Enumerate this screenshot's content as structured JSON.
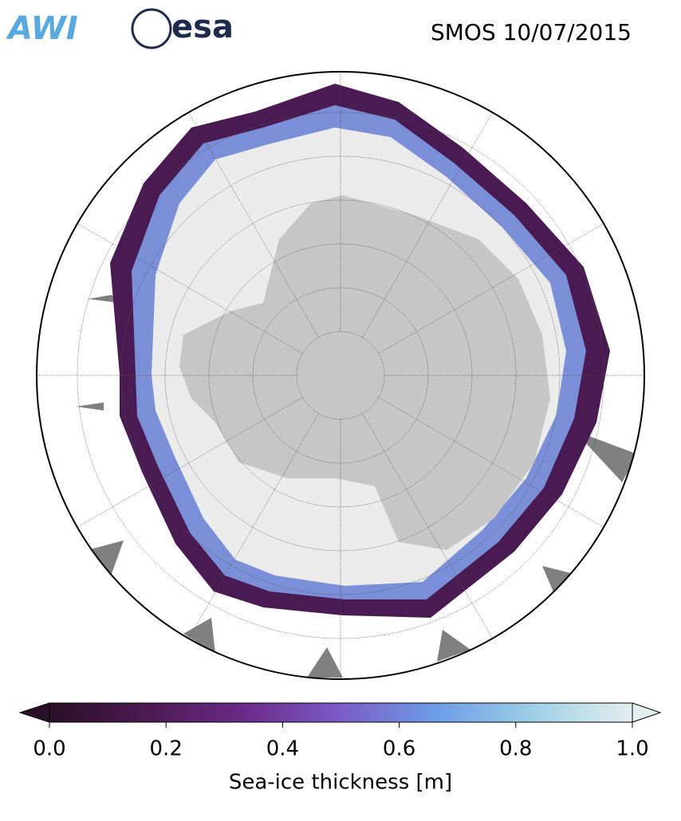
{
  "header": {
    "logos": [
      "AWI",
      "esa"
    ],
    "title": "SMOS 10/07/2015"
  },
  "colorbar": {
    "label": "Sea-ice thickness [m]",
    "lim": [
      0,
      1
    ],
    "ticks": [
      {
        "value": 0,
        "label": "0.0"
      },
      {
        "value": 0.2,
        "label": "0.2"
      },
      {
        "value": 0.4,
        "label": "0.4"
      },
      {
        "value": 0.6,
        "label": "0.6"
      },
      {
        "value": 0.8,
        "label": "0.8"
      },
      {
        "value": 1,
        "label": "1.0"
      }
    ],
    "colors": [
      "#2a0f28",
      "#4c1a52",
      "#6a2a88",
      "#7b5cc8",
      "#6d9de6",
      "#9fd0e6",
      "#e4eeee"
    ]
  }
}
